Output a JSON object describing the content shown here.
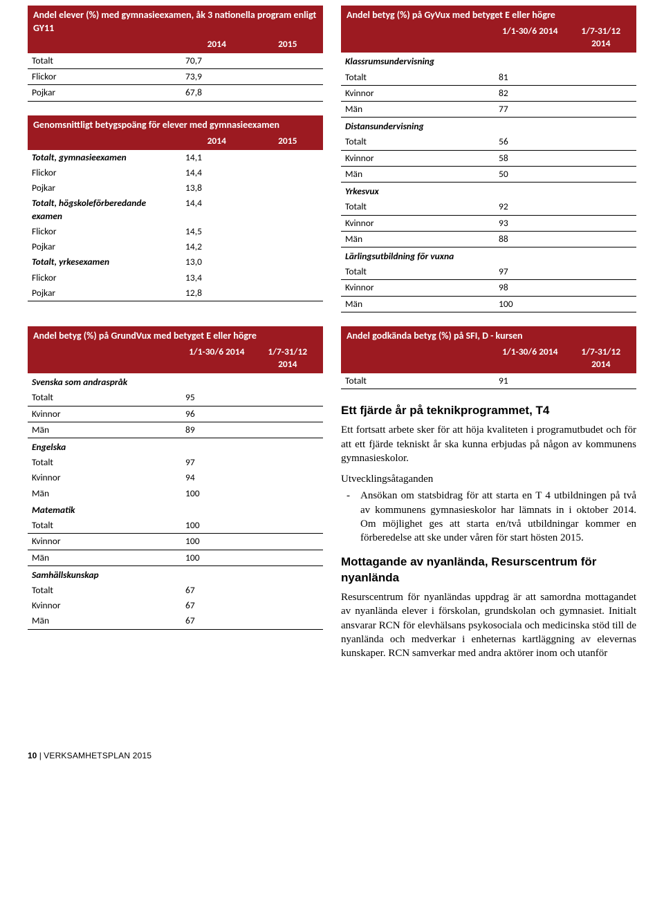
{
  "colors": {
    "header_bg": "#9c1a21",
    "header_text": "#ffffff",
    "border": "#000000"
  },
  "table1": {
    "title": "Andel elever (%) med gymnasieexamen, åk 3 nationella program enligt GY11",
    "year1": "2014",
    "year2": "2015",
    "rows": [
      {
        "label": "Totalt",
        "v1": "70,7",
        "v2": ""
      },
      {
        "label": "Flickor",
        "v1": "73,9",
        "v2": ""
      },
      {
        "label": "Pojkar",
        "v1": "67,8",
        "v2": ""
      }
    ]
  },
  "table2": {
    "title": "Genomsnittligt betygspoäng för elever med gymnasieexamen",
    "year1": "2014",
    "year2": "2015",
    "rows": [
      {
        "label": "Totalt, gymnasieexamen",
        "italic": true,
        "v1": "14,1",
        "v2": ""
      },
      {
        "label": "Flickor",
        "v1": "14,4",
        "v2": ""
      },
      {
        "label": "Pojkar",
        "v1": "13,8",
        "v2": ""
      },
      {
        "label": "Totalt, högskoleförberedande examen",
        "italic": true,
        "v1": "14,4",
        "v2": ""
      },
      {
        "label": "Flickor",
        "v1": "14,5",
        "v2": ""
      },
      {
        "label": "Pojkar",
        "v1": "14,2",
        "v2": ""
      },
      {
        "label": "Totalt, yrkesexamen",
        "italic": true,
        "v1": "13,0",
        "v2": ""
      },
      {
        "label": "Flickor",
        "v1": "13,4",
        "v2": ""
      },
      {
        "label": "Pojkar",
        "v1": "12,8",
        "v2": ""
      }
    ]
  },
  "table3": {
    "title": "Andel betyg (%) på GrundVux med betyget E eller högre",
    "period1": "1/1-30/6 2014",
    "period2": "1/7-31/12 2014",
    "groups": [
      {
        "heading": "Svenska som andraspråk",
        "rows": [
          {
            "label": "Totalt",
            "v1": "95"
          },
          {
            "label": "Kvinnor",
            "v1": "96"
          },
          {
            "label": "Män",
            "v1": "89"
          }
        ]
      },
      {
        "heading": "Engelska",
        "rows": [
          {
            "label": "Totalt",
            "v1": "97"
          },
          {
            "label": "Kvinnor",
            "v1": "94"
          },
          {
            "label": "Män",
            "v1": "100"
          }
        ]
      },
      {
        "heading": "Matematik",
        "rows": [
          {
            "label": "Totalt",
            "v1": "100"
          },
          {
            "label": "Kvinnor",
            "v1": "100"
          },
          {
            "label": "Män",
            "v1": "100"
          }
        ]
      },
      {
        "heading": "Samhällskunskap",
        "rows": [
          {
            "label": "Totalt",
            "v1": "67"
          },
          {
            "label": "Kvinnor",
            "v1": "67"
          },
          {
            "label": "Män",
            "v1": "67"
          }
        ]
      }
    ]
  },
  "table4": {
    "title": "Andel betyg (%) på GyVux med betyget E eller högre",
    "period1": "1/1-30/6 2014",
    "period2": "1/7-31/12 2014",
    "groups": [
      {
        "heading": "Klassrumsundervisning",
        "rows": [
          {
            "label": "Totalt",
            "v1": "81"
          },
          {
            "label": "Kvinnor",
            "v1": "82"
          },
          {
            "label": "Män",
            "v1": "77"
          }
        ]
      },
      {
        "heading": "Distansundervisning",
        "rows": [
          {
            "label": "Totalt",
            "v1": "56"
          },
          {
            "label": "Kvinnor",
            "v1": "58"
          },
          {
            "label": "Män",
            "v1": "50"
          }
        ]
      },
      {
        "heading": "Yrkesvux",
        "rows": [
          {
            "label": "Totalt",
            "v1": "92"
          },
          {
            "label": "Kvinnor",
            "v1": "93"
          },
          {
            "label": "Män",
            "v1": "88"
          }
        ]
      },
      {
        "heading": "Lärlingsutbildning för vuxna",
        "rows": [
          {
            "label": "Totalt",
            "v1": "97"
          },
          {
            "label": "Kvinnor",
            "v1": "98"
          },
          {
            "label": "Män",
            "v1": "100"
          }
        ]
      }
    ]
  },
  "table5": {
    "title": "Andel godkända betyg (%) på SFI, D - kursen",
    "period1": "1/1-30/6 2014",
    "period2": "1/7-31/12 2014",
    "rows": [
      {
        "label": "Totalt",
        "v1": "91",
        "v2": ""
      }
    ]
  },
  "text": {
    "h1": "Ett fjärde år på teknikprogrammet, T4",
    "p1": "Ett fortsatt arbete sker för att höja kvaliteten i programutbudet och för att ett fjärde tekniskt år ska kunna erbjudas på någon av kommunens gymnasieskolor.",
    "h_utv": "Utvecklingsåtaganden",
    "bullet1": "Ansökan om statsbidrag för att starta en T 4 utbildningen på två av kommunens gymnasieskolor har lämnats in i oktober 2014. Om möjlighet ges att starta en/två utbildningar kommer en förberedelse att ske under våren för start hösten 2015.",
    "h2": "Mottagande av nyanlända, Resurscentrum för nyanlända",
    "p2": "Resurscentrum för nyanländas uppdrag är att samordna mottagandet av nyanlända elever i förskolan, grundskolan och gymnasiet. Initialt ansvarar RCN för elevhälsans psykosociala och medicinska stöd till de nyanlända och medverkar i enheternas kartläggning av elevernas kunskaper. RCN samverkar med andra aktörer inom och utanför"
  },
  "footer": {
    "page": "10",
    "doc": "VERKSAMHETSPLAN 2015"
  }
}
